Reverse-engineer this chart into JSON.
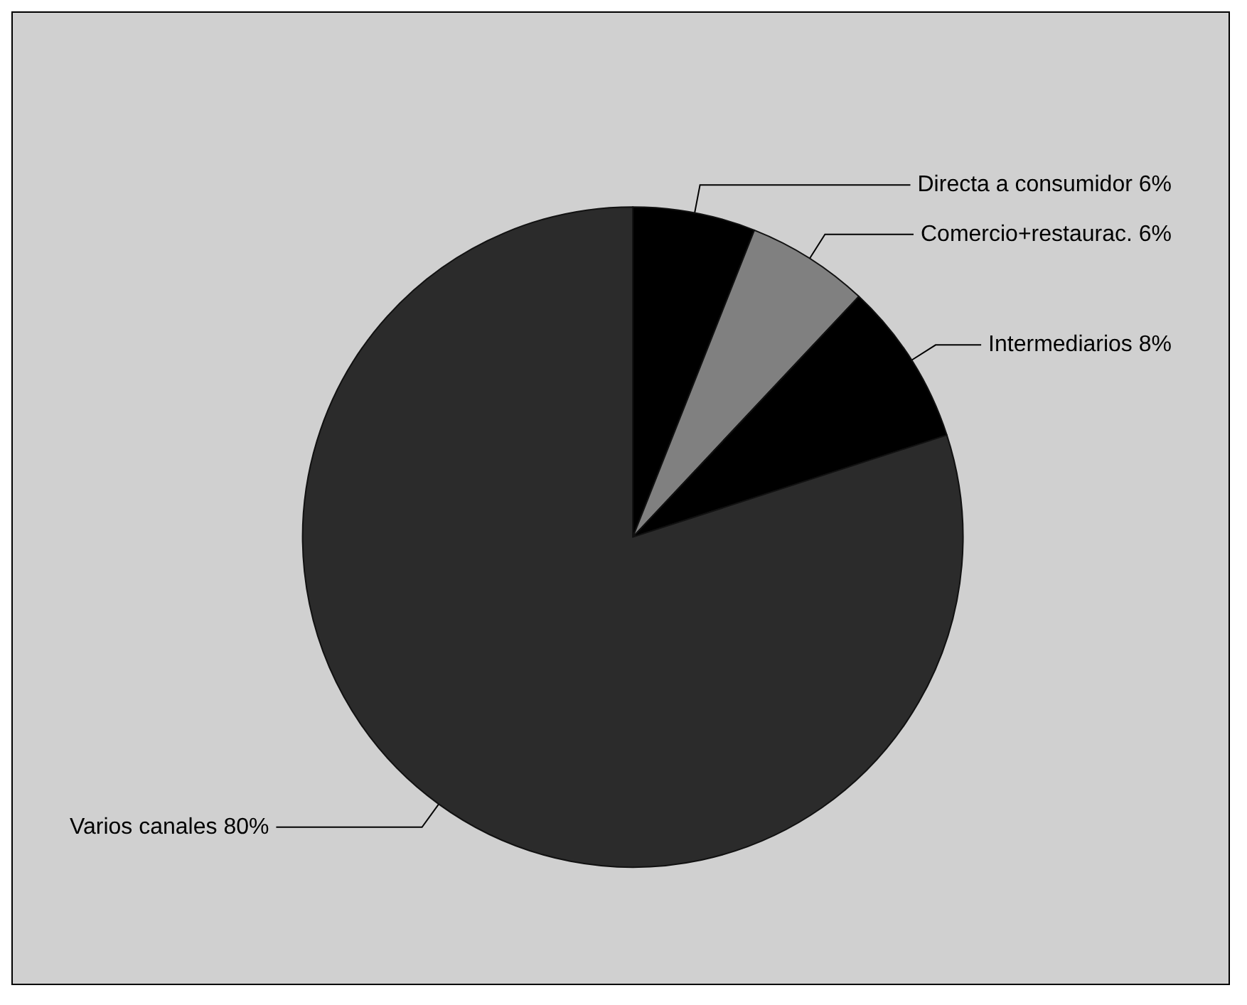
{
  "chart_data": {
    "type": "pie",
    "categories": [
      "Directa a consumidor",
      "Comercio+restaurac.",
      "Intermediarios",
      "Varios canales"
    ],
    "values": [
      6,
      6,
      8,
      80
    ],
    "value_labels": [
      "6%",
      "6%",
      "8%",
      "80%"
    ],
    "colors": [
      "#000000",
      "#808080",
      "#000000",
      "#2b2b2b"
    ],
    "legend": false
  }
}
